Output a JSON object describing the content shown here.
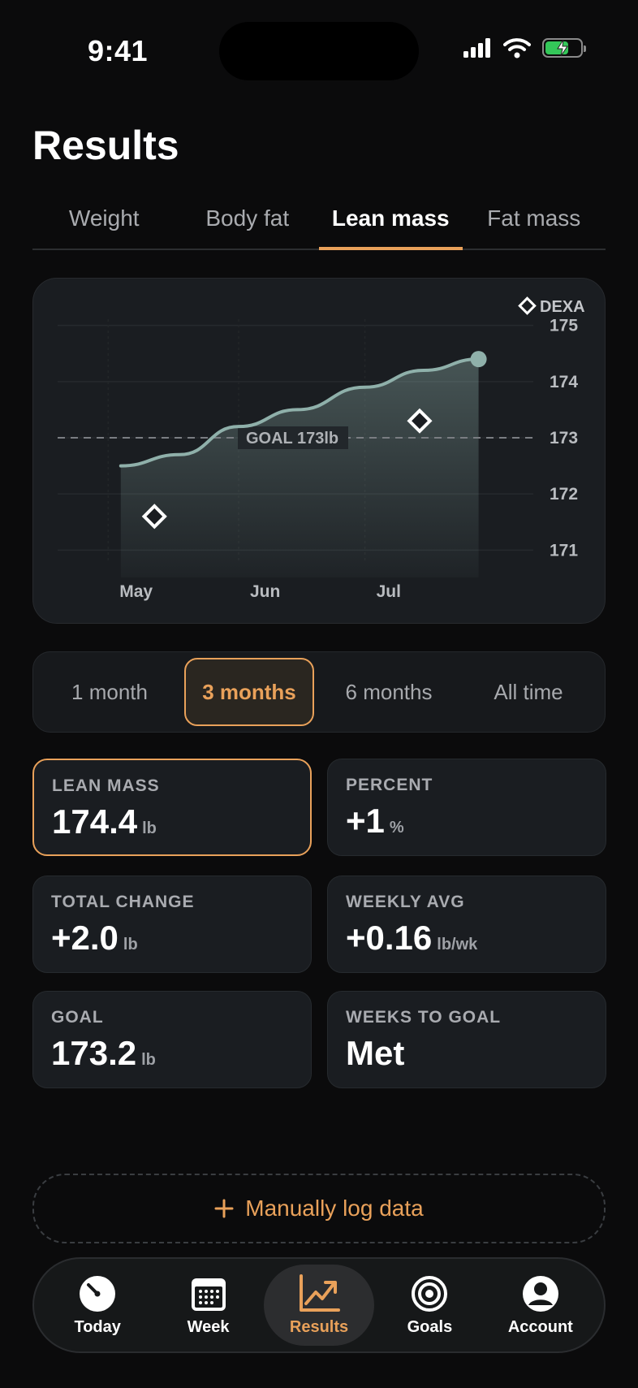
{
  "status": {
    "time": "9:41"
  },
  "page_title": "Results",
  "tabs": [
    {
      "label": "Weight"
    },
    {
      "label": "Body fat"
    },
    {
      "label": "Lean mass"
    },
    {
      "label": "Fat mass"
    }
  ],
  "chart_data": {
    "type": "area",
    "series": [
      {
        "x": [
          "May 4",
          "May 18",
          "Jun 1",
          "Jun 15",
          "Jul 1",
          "Jul 15",
          "Jul 28"
        ],
        "values": [
          172.5,
          172.7,
          173.2,
          173.5,
          173.9,
          174.2,
          174.4
        ]
      }
    ],
    "dexa_points": [
      {
        "x": "May 12",
        "y": 171.6
      },
      {
        "x": "Jul 14",
        "y": 173.3
      }
    ],
    "legend": "DEXA",
    "goal_line": {
      "value": 173,
      "label": "GOAL 173lb"
    },
    "x_ticks": [
      "May",
      "Jun",
      "Jul"
    ],
    "y_ticks": [
      175,
      174,
      173,
      172,
      171
    ],
    "ylim": [
      170.6,
      175.4
    ],
    "grid": true
  },
  "range_options": [
    {
      "label": "1 month"
    },
    {
      "label": "3 months"
    },
    {
      "label": "6 months"
    },
    {
      "label": "All time"
    }
  ],
  "stats": {
    "lean_mass": {
      "label": "LEAN MASS",
      "value": "174.4",
      "unit": "lb"
    },
    "percent": {
      "label": "PERCENT",
      "value": "+1",
      "unit": "%"
    },
    "total_change": {
      "label": "TOTAL CHANGE",
      "value": "+2.0",
      "unit": "lb"
    },
    "weekly_avg": {
      "label": "WEEKLY AVG",
      "value": "+0.16",
      "unit": "lb/wk"
    },
    "goal": {
      "label": "GOAL",
      "value": "173.2",
      "unit": "lb"
    },
    "weeks_to_goal": {
      "label": "WEEKS TO GOAL",
      "value": "Met",
      "unit": ""
    }
  },
  "manual_log": {
    "label": "Manually log data"
  },
  "nav": [
    {
      "label": "Today",
      "icon": "gauge-icon"
    },
    {
      "label": "Week",
      "icon": "calendar-icon"
    },
    {
      "label": "Results",
      "icon": "chart-trend-icon"
    },
    {
      "label": "Goals",
      "icon": "target-icon"
    },
    {
      "label": "Account",
      "icon": "person-icon"
    }
  ],
  "colors": {
    "accent": "#e9a15a",
    "line": "#8fb0aa",
    "background": "#0b0b0c"
  }
}
